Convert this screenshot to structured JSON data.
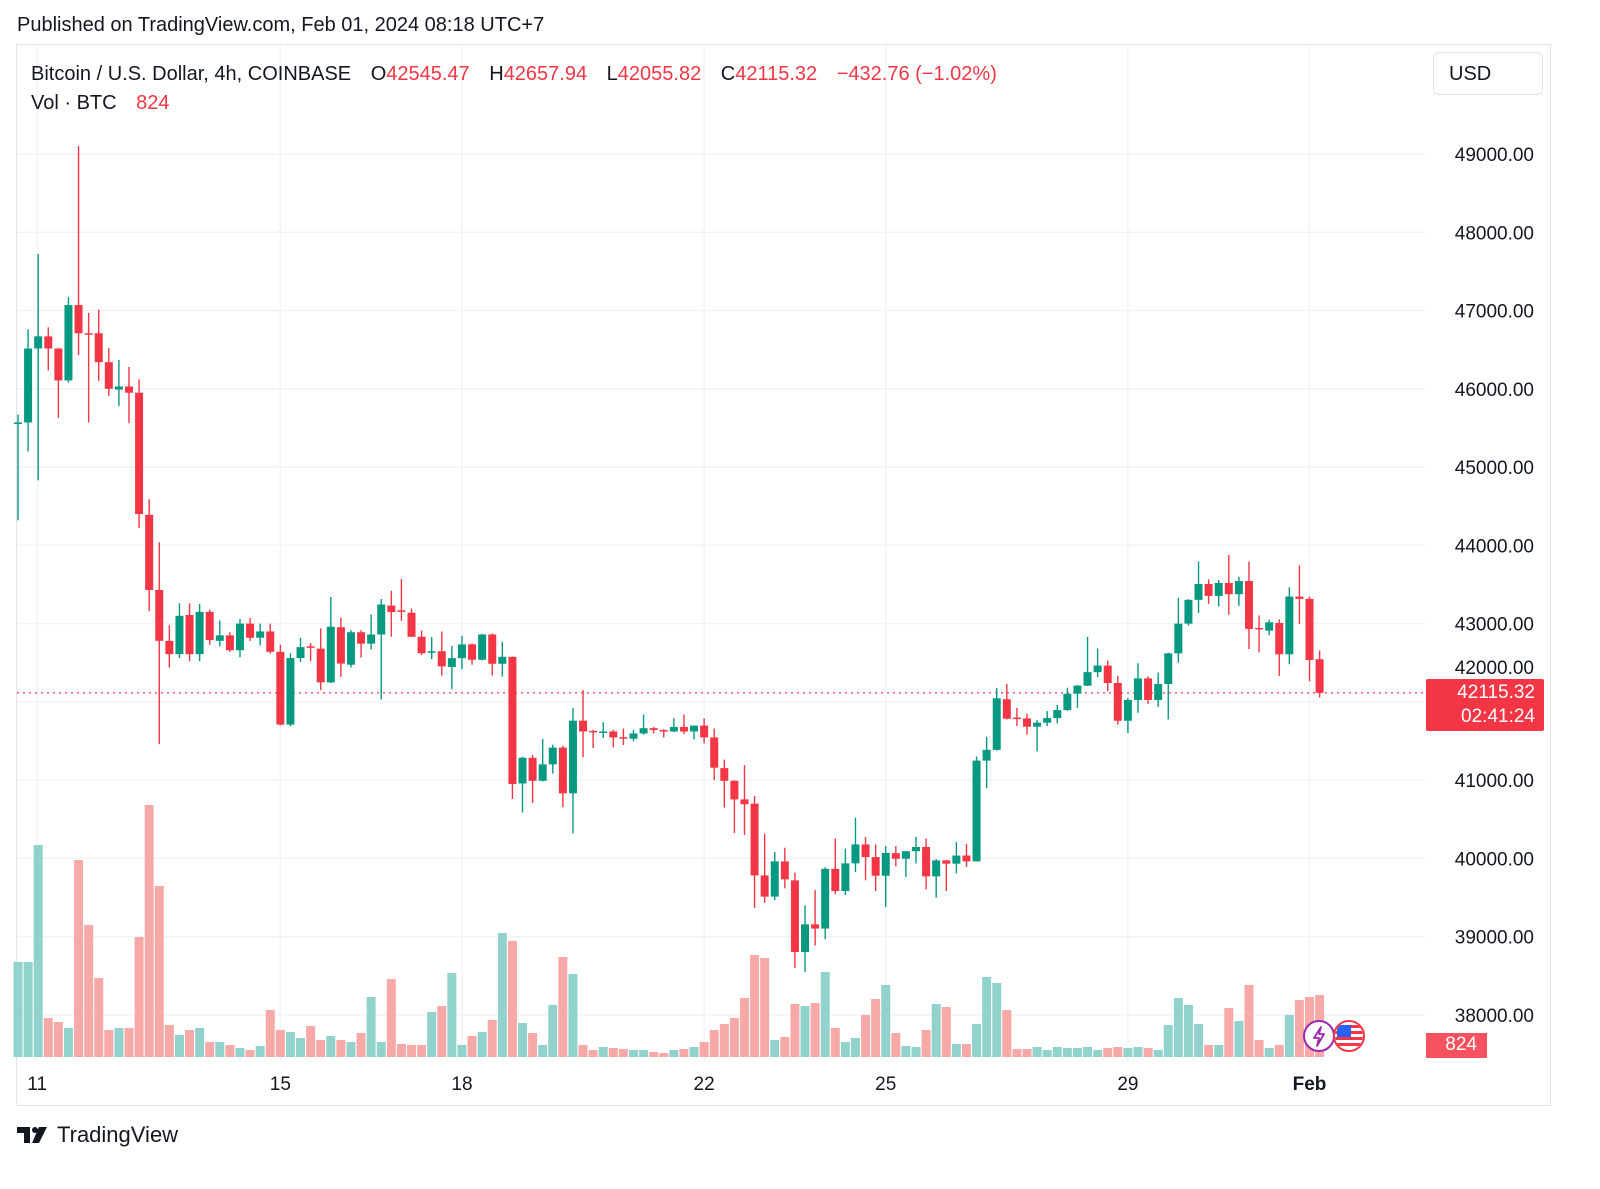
{
  "header": {
    "published": "Published on TradingView.com, Feb 01, 2024 08:18 UTC+7"
  },
  "legend": {
    "symbol": "Bitcoin / U.S. Dollar, 4h, COINBASE",
    "o_label": "O",
    "o_value": "42545.47",
    "h_label": "H",
    "h_value": "42657.94",
    "l_label": "L",
    "l_value": "42055.82",
    "c_label": "C",
    "c_value": "42115.32",
    "change": "−432.76 (−1.02%)",
    "vol_label": "Vol · BTC",
    "vol_value": "824"
  },
  "currency_button": "USD",
  "last_price": {
    "price": "42115.32",
    "countdown": "02:41:24",
    "volume": "824"
  },
  "footer": {
    "brand": "TradingView"
  },
  "colors": {
    "up": "#089981",
    "down": "#F23645",
    "vol_up": "#92D2CC",
    "vol_down": "#F7A9A7",
    "grid": "#f0f3fa"
  },
  "chart_data": {
    "type": "candlestick",
    "title": "Bitcoin / U.S. Dollar, 4h, COINBASE",
    "ylim": [
      37500,
      49400
    ],
    "y_ticks": [
      "49000.00",
      "48000.00",
      "47000.00",
      "46000.00",
      "45000.00",
      "44000.00",
      "43000.00",
      "42000.00",
      "41000.00",
      "40000.00",
      "39000.00",
      "38000.00"
    ],
    "x_ticks": [
      {
        "label": "11",
        "index": 1.9,
        "bold": false
      },
      {
        "label": "15",
        "index": 26,
        "bold": false
      },
      {
        "label": "18",
        "index": 44,
        "bold": false
      },
      {
        "label": "22",
        "index": 68,
        "bold": false
      },
      {
        "label": "25",
        "index": 86,
        "bold": false
      },
      {
        "label": "29",
        "index": 110,
        "bold": false
      },
      {
        "label": "Feb",
        "index": 128,
        "bold": true
      }
    ],
    "ohlc": [
      [
        45550,
        45670,
        44320,
        45570
      ],
      [
        45570,
        46760,
        45200,
        46515
      ],
      [
        46515,
        47724,
        44830,
        46670
      ],
      [
        46670,
        46785,
        46235,
        46515
      ],
      [
        46515,
        46520,
        45630,
        46107
      ],
      [
        46107,
        47170,
        46080,
        47070
      ],
      [
        47070,
        49100,
        46430,
        46710
      ],
      [
        46710,
        46970,
        45570,
        46700
      ],
      [
        46710,
        47010,
        46100,
        46340
      ],
      [
        46340,
        46520,
        45910,
        46000
      ],
      [
        45990,
        46370,
        45780,
        46030
      ],
      [
        46030,
        46280,
        45560,
        45950
      ],
      [
        45950,
        46120,
        44220,
        44400
      ],
      [
        44390,
        44590,
        43160,
        43430
      ],
      [
        43430,
        44040,
        41460,
        42780
      ],
      [
        42780,
        42980,
        42440,
        42610
      ],
      [
        42610,
        43260,
        42560,
        43100
      ],
      [
        43110,
        43260,
        42520,
        42610
      ],
      [
        42610,
        43250,
        42520,
        43150
      ],
      [
        43150,
        43180,
        42730,
        42790
      ],
      [
        42780,
        43040,
        42710,
        42850
      ],
      [
        42850,
        42890,
        42640,
        42660
      ],
      [
        42660,
        43060,
        42570,
        43000
      ],
      [
        43000,
        43070,
        42780,
        42820
      ],
      [
        42820,
        43000,
        42720,
        42900
      ],
      [
        42900,
        43000,
        42620,
        42640
      ],
      [
        42640,
        42730,
        41700,
        41710
      ],
      [
        41710,
        42620,
        41690,
        42560
      ],
      [
        42560,
        42820,
        42510,
        42700
      ],
      [
        42710,
        42750,
        42520,
        42700
      ],
      [
        42680,
        42940,
        42150,
        42250
      ],
      [
        42250,
        43340,
        42240,
        42960
      ],
      [
        42954,
        43076,
        42320,
        42490
      ],
      [
        42475,
        42916,
        42440,
        42890
      ],
      [
        42890,
        42916,
        42567,
        42744
      ],
      [
        42744,
        43118,
        42668,
        42861
      ],
      [
        42861,
        43315,
        42029,
        43244
      ],
      [
        43231,
        43420,
        42832,
        43147
      ],
      [
        43170,
        43571,
        43034,
        43160
      ],
      [
        43139,
        43193,
        42832,
        42832
      ],
      [
        42832,
        42912,
        42600,
        42622
      ],
      [
        42630,
        42828,
        42546,
        42647
      ],
      [
        42647,
        42899,
        42336,
        42454
      ],
      [
        42446,
        42714,
        42160,
        42559
      ],
      [
        42559,
        42845,
        42416,
        42735
      ],
      [
        42735,
        42748,
        42475,
        42538
      ],
      [
        42538,
        42870,
        42530,
        42861
      ],
      [
        42861,
        42874,
        42336,
        42487
      ],
      [
        42487,
        42769,
        42324,
        42576
      ],
      [
        42576,
        42580,
        40760,
        40950
      ],
      [
        40958,
        41300,
        40588,
        41286
      ],
      [
        41286,
        41319,
        40710,
        40992
      ],
      [
        40992,
        41525,
        40983,
        41202
      ],
      [
        41202,
        41454,
        41084,
        41416
      ],
      [
        41416,
        41437,
        40655,
        40832
      ],
      [
        40832,
        41924,
        40320,
        41760
      ],
      [
        41760,
        42151,
        41294,
        41622
      ],
      [
        41630,
        41640,
        41410,
        41620
      ],
      [
        41605,
        41740,
        41538,
        41622
      ],
      [
        41622,
        41643,
        41420,
        41546
      ],
      [
        41550,
        41660,
        41450,
        41545
      ],
      [
        41529,
        41643,
        41496,
        41597
      ],
      [
        41597,
        41840,
        41580,
        41664
      ],
      [
        41664,
        41680,
        41597,
        41640
      ],
      [
        41640,
        41650,
        41546,
        41622
      ],
      [
        41622,
        41790,
        41613,
        41680
      ],
      [
        41680,
        41840,
        41588,
        41622
      ],
      [
        41622,
        41697,
        41520,
        41697
      ],
      [
        41697,
        41790,
        41470,
        41546
      ],
      [
        41546,
        41660,
        41000,
        41160
      ],
      [
        41154,
        41262,
        40650,
        40992
      ],
      [
        40992,
        41000,
        40325,
        40754
      ],
      [
        40754,
        41192,
        40300,
        40692
      ],
      [
        40700,
        40800,
        39367,
        39783
      ],
      [
        39783,
        40317,
        39433,
        39512
      ],
      [
        39512,
        40083,
        39467,
        39962
      ],
      [
        39962,
        40137,
        39617,
        39733
      ],
      [
        39720,
        39817,
        38600,
        38804
      ],
      [
        38804,
        39400,
        38550,
        39158
      ],
      [
        39158,
        39596,
        38887,
        39104
      ],
      [
        39104,
        39887,
        38970,
        39867
      ],
      [
        39867,
        40254,
        39542,
        39583
      ],
      [
        39583,
        40125,
        39533,
        39937
      ],
      [
        39937,
        40521,
        39825,
        40179
      ],
      [
        40179,
        40275,
        39721,
        40017
      ],
      [
        40017,
        40179,
        39583,
        39779
      ],
      [
        39779,
        40158,
        39379,
        40071
      ],
      [
        40067,
        40158,
        39900,
        39996
      ],
      [
        39996,
        40092,
        39763,
        40092
      ],
      [
        40092,
        40275,
        39937,
        40146
      ],
      [
        40146,
        40254,
        39604,
        39771
      ],
      [
        39771,
        39992,
        39500,
        39975
      ],
      [
        39975,
        39983,
        39583,
        39933
      ],
      [
        39933,
        40212,
        39808,
        40037
      ],
      [
        40037,
        40187,
        39892,
        39962
      ],
      [
        39962,
        41304,
        39962,
        41250
      ],
      [
        41250,
        41554,
        40896,
        41387
      ],
      [
        41387,
        42179,
        41379,
        42046
      ],
      [
        42034,
        42232,
        41776,
        41785
      ],
      [
        41800,
        41924,
        41692,
        41797
      ],
      [
        41789,
        41852,
        41582,
        41683
      ],
      [
        41683,
        41768,
        41367,
        41734
      ],
      [
        41734,
        41882,
        41692,
        41793
      ],
      [
        41793,
        41962,
        41726,
        41895
      ],
      [
        41895,
        42181,
        41886,
        42105
      ],
      [
        42105,
        42219,
        41924,
        42207
      ],
      [
        42207,
        42831,
        42203,
        42380
      ],
      [
        42380,
        42683,
        42316,
        42464
      ],
      [
        42464,
        42527,
        42135,
        42241
      ],
      [
        42241,
        42333,
        41709,
        41759
      ],
      [
        41759,
        42050,
        41603,
        42025
      ],
      [
        42025,
        42494,
        41861,
        42300
      ],
      [
        42300,
        42325,
        41975,
        42025
      ],
      [
        42025,
        42375,
        41937,
        42228
      ],
      [
        42228,
        42629,
        41776,
        42620
      ],
      [
        42620,
        43329,
        42502,
        43000
      ],
      [
        43000,
        43312,
        42975,
        43304
      ],
      [
        43304,
        43793,
        43135,
        43506
      ],
      [
        43506,
        43565,
        43253,
        43354
      ],
      [
        43354,
        43557,
        43220,
        43519
      ],
      [
        43519,
        43877,
        43114,
        43376
      ],
      [
        43376,
        43599,
        43228,
        43544
      ],
      [
        43544,
        43793,
        42675,
        42932
      ],
      [
        42945,
        43105,
        42633,
        42936
      ],
      [
        42911,
        43050,
        42852,
        43017
      ],
      [
        43008,
        43055,
        42333,
        42608
      ],
      [
        42608,
        43464,
        42481,
        43346
      ],
      [
        43346,
        43743,
        42996,
        43316
      ],
      [
        43316,
        43346,
        42262,
        42536
      ],
      [
        42545.47,
        42657.94,
        42055.82,
        42115.32
      ]
    ],
    "volume": [
      1264,
      1264,
      2820,
      519,
      466,
      386,
      2620,
      1756,
      1051,
      359,
      386,
      386,
      1596,
      3352,
      2274,
      426,
      293,
      359,
      386,
      200,
      200,
      160,
      120,
      93,
      146,
      625,
      359,
      333,
      253,
      412,
      226,
      279,
      226,
      200,
      319,
      798,
      200,
      1037,
      173,
      160,
      160,
      599,
      678,
      1117,
      160,
      279,
      333,
      492,
      1649,
      1543,
      452,
      319,
      160,
      692,
      1330,
      1104,
      160,
      93,
      133,
      120,
      106,
      93,
      93,
      67,
      53,
      93,
      106,
      133,
      200,
      359,
      439,
      519,
      785,
      1357,
      1317,
      226,
      266,
      705,
      678,
      718,
      1131,
      386,
      200,
      253,
      559,
      771,
      958,
      319,
      146,
      133,
      359,
      705,
      665,
      173,
      173,
      439,
      1064,
      984,
      625,
      106,
      106,
      133,
      93,
      133,
      120,
      120,
      133,
      93,
      120,
      133,
      120,
      133,
      120,
      93,
      426,
      785,
      692,
      439,
      160,
      160,
      652,
      479,
      958,
      226,
      120,
      160,
      559,
      758,
      798,
      824
    ],
    "last_price": 42115.32
  }
}
